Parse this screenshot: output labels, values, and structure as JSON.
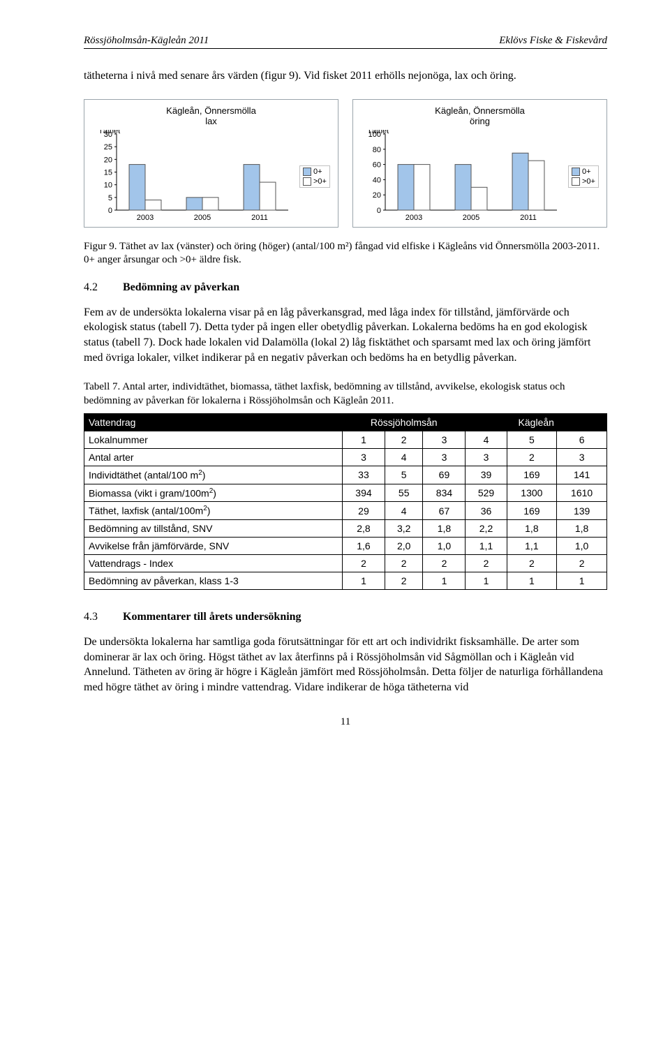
{
  "header": {
    "left": "Rössjöholmsån-Kägleån 2011",
    "right": "Eklövs Fiske & Fiskevård"
  },
  "intro_para": "tätheterna i nivå med senare års värden (figur 9). Vid fisket 2011 erhölls nejonöga, lax och öring.",
  "chart_left": {
    "type": "bar",
    "title_line1": "Kägleån, Önnersmölla",
    "title_line2": "lax",
    "ylabel": "Täthet",
    "categories": [
      "2003",
      "2005",
      "2011"
    ],
    "series": [
      {
        "name": "0+",
        "color": "#a2c5ea",
        "values": [
          18,
          5,
          18
        ]
      },
      {
        "name": ">0+",
        "color": "#ffffff",
        "values": [
          4,
          5,
          11
        ]
      }
    ],
    "ylim": [
      0,
      30
    ],
    "ytick_step": 5,
    "axis_font": 11,
    "bg": "#ffffff",
    "border": "#7e8a92"
  },
  "chart_right": {
    "type": "bar",
    "title_line1": "Kägleån, Önnersmölla",
    "title_line2": "öring",
    "ylabel": "Täthet",
    "categories": [
      "2003",
      "2005",
      "2011"
    ],
    "series": [
      {
        "name": "0+",
        "color": "#a2c5ea",
        "values": [
          60,
          60,
          75
        ]
      },
      {
        "name": ">0+",
        "color": "#ffffff",
        "values": [
          60,
          30,
          65
        ]
      }
    ],
    "ylim": [
      0,
      100
    ],
    "ytick_step": 20,
    "axis_font": 11,
    "bg": "#ffffff",
    "border": "#7e8a92"
  },
  "fig_caption": "Figur 9. Täthet av lax (vänster) och öring (höger) (antal/100 m²) fångad vid elfiske i Kägleåns vid Önnersmölla 2003-2011. 0+ anger årsungar och >0+ äldre fisk.",
  "sec42_num": "4.2",
  "sec42_title": "Bedömning av påverkan",
  "sec42_para": "Fem av de undersökta lokalerna visar på en låg påverkansgrad, med låga index för tillstånd, jämförvärde och ekologisk status (tabell 7). Detta tyder på ingen eller obetydlig påverkan. Lokalerna bedöms ha en god ekologisk status (tabell 7). Dock hade lokalen vid Dalamölla (lokal 2) låg fisktäthet och sparsamt med lax och öring jämfört med övriga lokaler, vilket indikerar på en negativ påverkan och bedöms ha en betydlig påverkan.",
  "tab7_caption": "Tabell 7. Antal arter, individtäthet, biomassa, täthet laxfisk, bedömning av tillstånd, avvikelse, ekologisk status och bedömning av påverkan för lokalerna i Rössjöholmsån och Kägleån 2011.",
  "table": {
    "header_row": {
      "label": "Vattendrag",
      "group1": "Rössjöholmsån",
      "group2": "Kägleån"
    },
    "lokalnummer_label": "Lokalnummer",
    "cols": [
      "1",
      "2",
      "3",
      "4",
      "5",
      "6"
    ],
    "rows": [
      {
        "label": "Antal arter",
        "vals": [
          "3",
          "4",
          "3",
          "3",
          "2",
          "3"
        ]
      },
      {
        "label": "Individtäthet (antal/100 m²)",
        "vals": [
          "33",
          "5",
          "69",
          "39",
          "169",
          "141"
        ]
      },
      {
        "label": "Biomassa (vikt i gram/100m²)",
        "vals": [
          "394",
          "55",
          "834",
          "529",
          "1300",
          "1610"
        ]
      },
      {
        "label": "Täthet, laxfisk (antal/100m²)",
        "vals": [
          "29",
          "4",
          "67",
          "36",
          "169",
          "139"
        ]
      },
      {
        "label": "Bedömning av tillstånd, SNV",
        "vals": [
          "2,8",
          "3,2",
          "1,8",
          "2,2",
          "1,8",
          "1,8"
        ]
      },
      {
        "label": "Avvikelse från jämförvärde, SNV",
        "vals": [
          "1,6",
          "2,0",
          "1,0",
          "1,1",
          "1,1",
          "1,0"
        ]
      },
      {
        "label": "Vattendrags - Index",
        "vals": [
          "2",
          "2",
          "2",
          "2",
          "2",
          "2"
        ]
      },
      {
        "label": "Bedömning av påverkan, klass 1-3",
        "vals": [
          "1",
          "2",
          "1",
          "1",
          "1",
          "1"
        ]
      }
    ]
  },
  "sec43_num": "4.3",
  "sec43_title": "Kommentarer till årets undersökning",
  "sec43_para": "De undersökta lokalerna har samtliga goda förutsättningar för ett art och individrikt fisksamhälle. De arter som dominerar är lax och öring. Högst täthet av lax återfinns på i Rössjöholmsån vid Sågmöllan och i Kägleån vid Annelund. Tätheten av öring är högre i Kägleån jämfört med Rössjöholmsån. Detta följer de naturliga förhållandena med högre täthet av öring i mindre vattendrag. Vidare indikerar de höga tätheterna vid",
  "page_num": "11"
}
